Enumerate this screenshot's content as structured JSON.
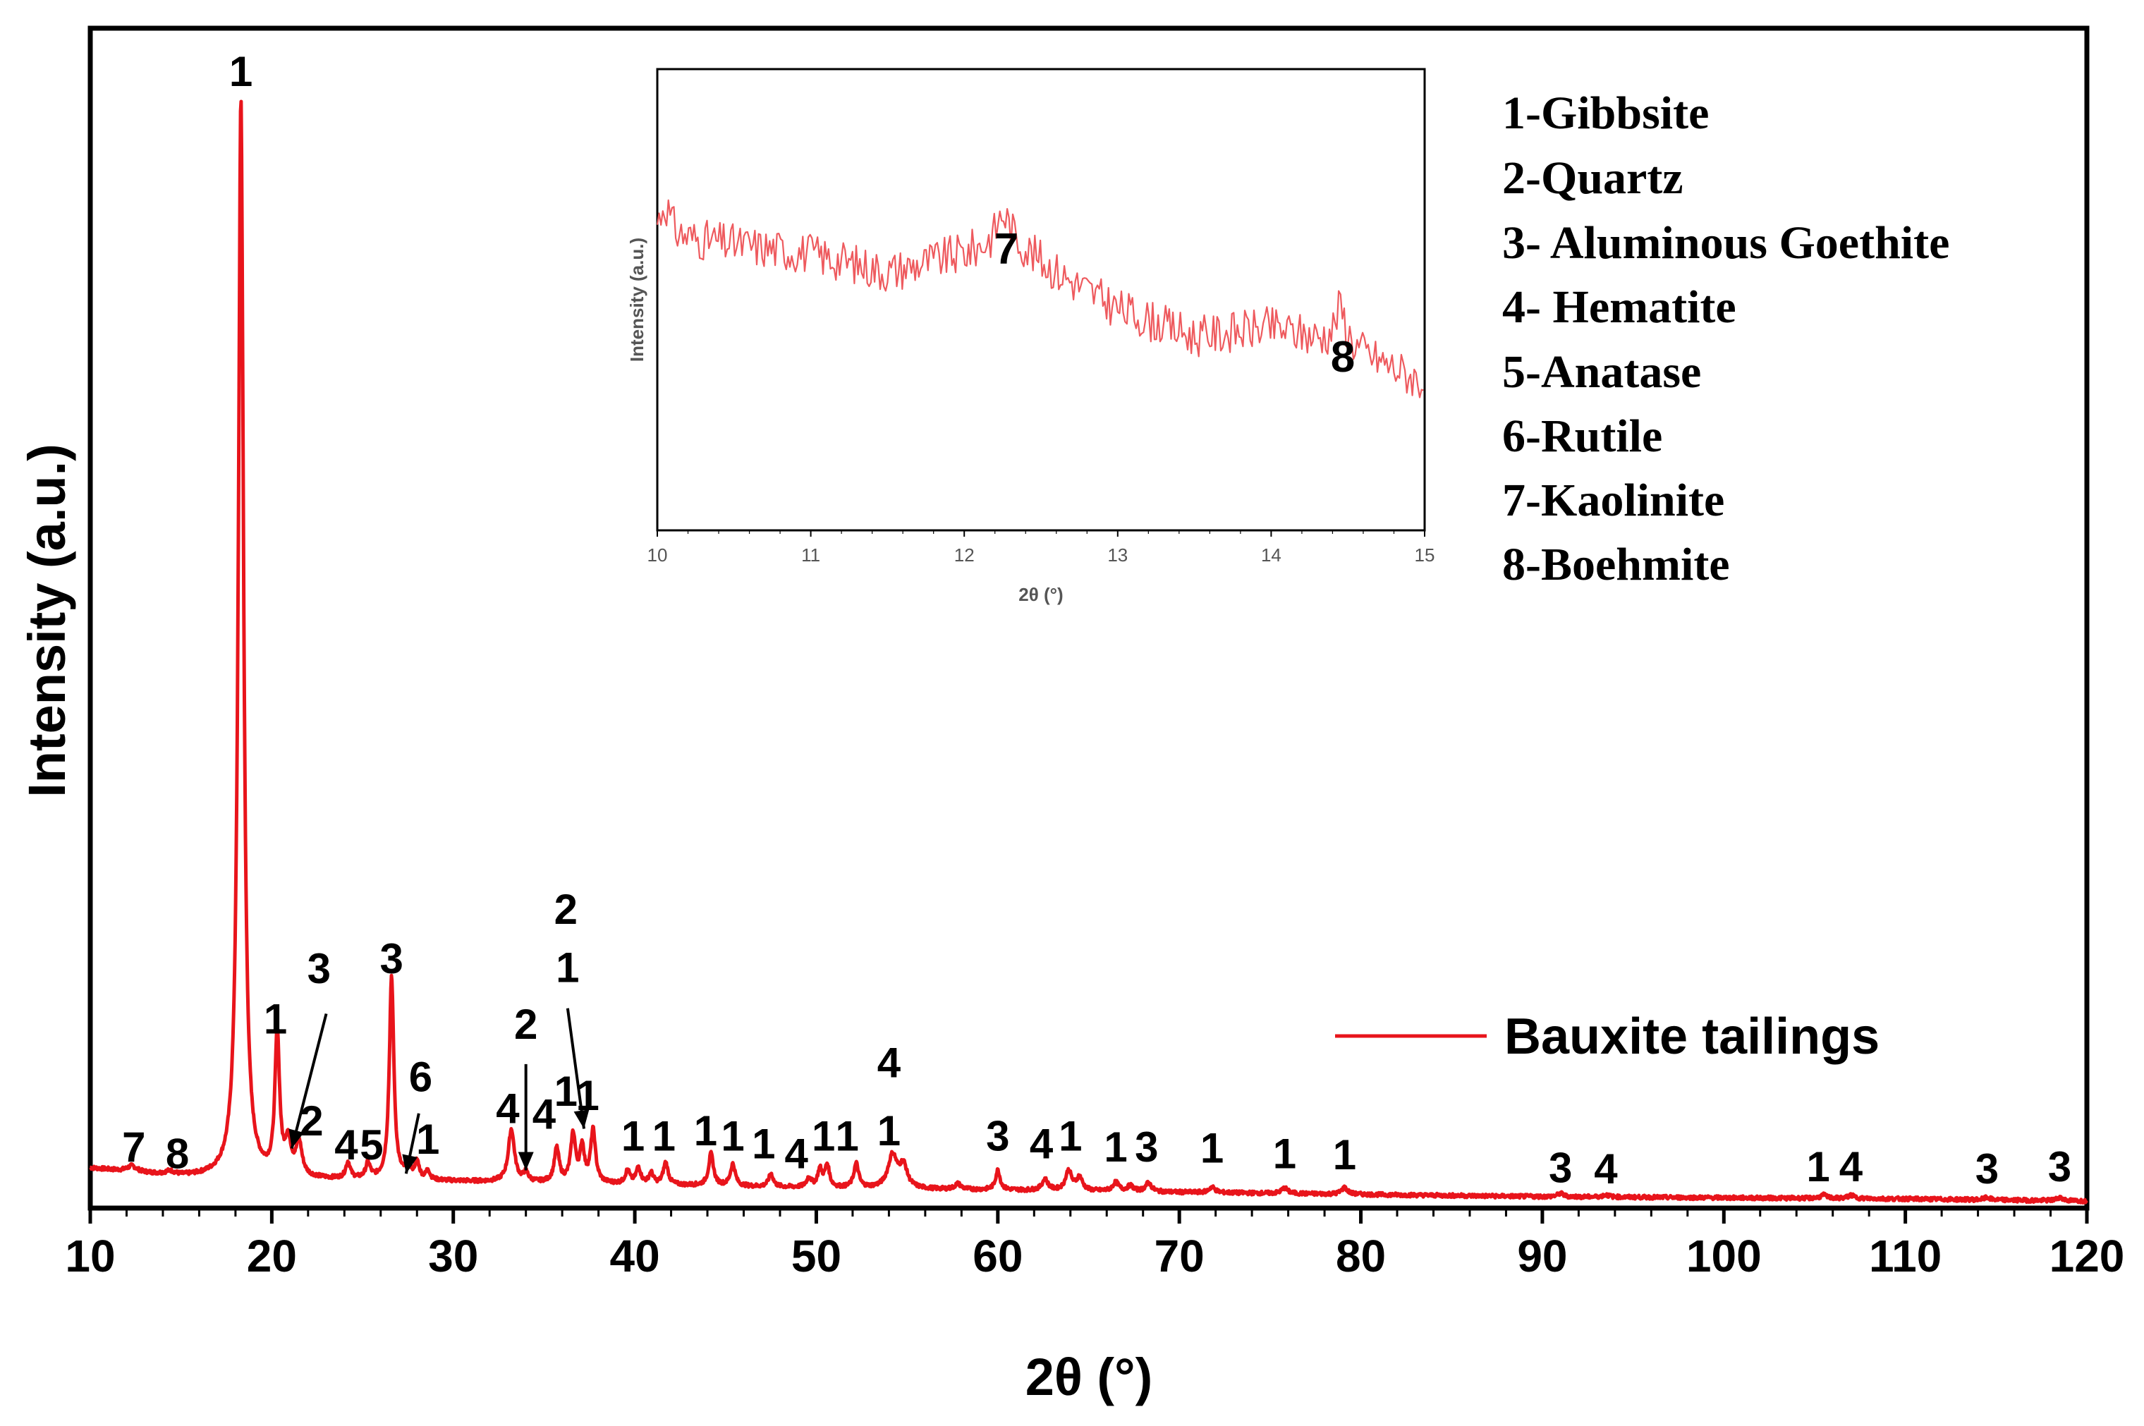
{
  "chart_data": [
    {
      "type": "line",
      "title": "",
      "xlabel": "2θ (°)",
      "ylabel": "Intensity (a.u.)",
      "xlim": [
        10,
        120
      ],
      "ylim": [
        0,
        100
      ],
      "x_ticks": [
        "10",
        "20",
        "30",
        "40",
        "50",
        "60",
        "70",
        "80",
        "90",
        "100",
        "110",
        "120"
      ],
      "legend": {
        "placement": "right",
        "entries": [
          {
            "name": "Bauxite tailings",
            "color": "#e8141b"
          }
        ]
      },
      "series": [
        {
          "name": "Bauxite tailings",
          "color": "#e8141b",
          "baseline": [
            [
              10,
              3.0
            ],
            [
              15,
              2.2
            ],
            [
              20,
              2.0
            ],
            [
              25,
              1.9
            ],
            [
              30,
              1.8
            ],
            [
              40,
              1.5
            ],
            [
              50,
              1.2
            ],
            [
              60,
              1.0
            ],
            [
              70,
              0.8
            ],
            [
              80,
              0.6
            ],
            [
              90,
              0.4
            ],
            [
              100,
              0.3
            ],
            [
              110,
              0.2
            ],
            [
              120,
              0.0
            ]
          ],
          "peaks": [
            {
              "x": 12.3,
              "h": 0.5,
              "w": 0.3
            },
            {
              "x": 14.4,
              "h": 0.3,
              "w": 0.3
            },
            {
              "x": 18.3,
              "h": 98.5,
              "w": 0.17
            },
            {
              "x": 20.3,
              "h": 13.0,
              "w": 0.15
            },
            {
              "x": 20.9,
              "h": 3.0,
              "w": 0.2
            },
            {
              "x": 21.5,
              "h": 3.0,
              "w": 0.2
            },
            {
              "x": 24.2,
              "h": 1.5,
              "w": 0.15
            },
            {
              "x": 25.3,
              "h": 1.4,
              "w": 0.15
            },
            {
              "x": 26.6,
              "h": 18.5,
              "w": 0.15
            },
            {
              "x": 27.5,
              "h": 1.3,
              "w": 0.15
            },
            {
              "x": 28.0,
              "h": 1.6,
              "w": 0.15
            },
            {
              "x": 28.6,
              "h": 0.9,
              "w": 0.12
            },
            {
              "x": 33.2,
              "h": 4.8,
              "w": 0.2
            },
            {
              "x": 34.0,
              "h": 0.8,
              "w": 0.15
            },
            {
              "x": 35.7,
              "h": 3.1,
              "w": 0.16
            },
            {
              "x": 36.6,
              "h": 4.4,
              "w": 0.16
            },
            {
              "x": 37.1,
              "h": 3.2,
              "w": 0.14
            },
            {
              "x": 37.7,
              "h": 4.8,
              "w": 0.16
            },
            {
              "x": 39.6,
              "h": 1.2,
              "w": 0.15
            },
            {
              "x": 40.2,
              "h": 1.5,
              "w": 0.15
            },
            {
              "x": 40.9,
              "h": 1.0,
              "w": 0.15
            },
            {
              "x": 41.7,
              "h": 2.0,
              "w": 0.16
            },
            {
              "x": 44.2,
              "h": 2.9,
              "w": 0.16
            },
            {
              "x": 45.4,
              "h": 2.0,
              "w": 0.16
            },
            {
              "x": 47.5,
              "h": 1.2,
              "w": 0.15
            },
            {
              "x": 49.6,
              "h": 0.9,
              "w": 0.15
            },
            {
              "x": 50.2,
              "h": 1.6,
              "w": 0.15
            },
            {
              "x": 50.6,
              "h": 2.0,
              "w": 0.15
            },
            {
              "x": 52.2,
              "h": 2.2,
              "w": 0.16
            },
            {
              "x": 54.2,
              "h": 3.0,
              "w": 0.3
            },
            {
              "x": 54.8,
              "h": 2.0,
              "w": 0.25
            },
            {
              "x": 57.8,
              "h": 0.5,
              "w": 0.2
            },
            {
              "x": 60.0,
              "h": 1.8,
              "w": 0.15
            },
            {
              "x": 62.6,
              "h": 1.0,
              "w": 0.2
            },
            {
              "x": 63.9,
              "h": 1.8,
              "w": 0.2
            },
            {
              "x": 64.5,
              "h": 1.2,
              "w": 0.2
            },
            {
              "x": 66.5,
              "h": 0.8,
              "w": 0.2
            },
            {
              "x": 67.3,
              "h": 0.5,
              "w": 0.2
            },
            {
              "x": 68.3,
              "h": 0.8,
              "w": 0.2
            },
            {
              "x": 71.8,
              "h": 0.5,
              "w": 0.2
            },
            {
              "x": 75.8,
              "h": 0.5,
              "w": 0.2
            },
            {
              "x": 79.1,
              "h": 0.6,
              "w": 0.2
            },
            {
              "x": 91.0,
              "h": 0.3,
              "w": 0.2
            },
            {
              "x": 93.5,
              "h": 0.2,
              "w": 0.2
            },
            {
              "x": 105.5,
              "h": 0.3,
              "w": 0.2
            },
            {
              "x": 107.0,
              "h": 0.3,
              "w": 0.2
            },
            {
              "x": 114.5,
              "h": 0.2,
              "w": 0.2
            },
            {
              "x": 118.5,
              "h": 0.3,
              "w": 0.2
            }
          ]
        }
      ],
      "peak_labels": [
        {
          "text": "7",
          "x": 12.4,
          "y": 3.6
        },
        {
          "text": "8",
          "x": 14.8,
          "y": 3.0
        },
        {
          "text": "1",
          "x": 18.3,
          "y": 101.8
        },
        {
          "text": "1",
          "x": 20.2,
          "y": 15.3
        },
        {
          "text": "3",
          "x": 22.6,
          "y": 19.9
        },
        {
          "text": "2",
          "x": 22.2,
          "y": 6.0
        },
        {
          "text": "4",
          "x": 24.1,
          "y": 3.8
        },
        {
          "text": "5",
          "x": 25.5,
          "y": 3.8
        },
        {
          "text": "3",
          "x": 26.6,
          "y": 20.8
        },
        {
          "text": "6",
          "x": 28.2,
          "y": 10.0
        },
        {
          "text": "1",
          "x": 28.6,
          "y": 4.3
        },
        {
          "text": "4",
          "x": 33.0,
          "y": 7.1
        },
        {
          "text": "2",
          "x": 34.0,
          "y": 14.8
        },
        {
          "text": "4",
          "x": 35.0,
          "y": 6.6
        },
        {
          "text": "2",
          "x": 36.2,
          "y": 25.3
        },
        {
          "text": "1",
          "x": 36.3,
          "y": 20.0
        },
        {
          "text": "1",
          "x": 36.2,
          "y": 8.7
        },
        {
          "text": "1",
          "x": 37.4,
          "y": 8.3
        },
        {
          "text": "1",
          "x": 39.9,
          "y": 4.6
        },
        {
          "text": "1",
          "x": 41.6,
          "y": 4.6
        },
        {
          "text": "1",
          "x": 43.9,
          "y": 5.1
        },
        {
          "text": "1",
          "x": 45.4,
          "y": 4.6
        },
        {
          "text": "1",
          "x": 47.1,
          "y": 3.9
        },
        {
          "text": "4",
          "x": 48.9,
          "y": 3.0
        },
        {
          "text": "1",
          "x": 50.4,
          "y": 4.6
        },
        {
          "text": "1",
          "x": 51.7,
          "y": 4.6
        },
        {
          "text": "4",
          "x": 54.0,
          "y": 11.3
        },
        {
          "text": "1",
          "x": 54.0,
          "y": 5.1
        },
        {
          "text": "3",
          "x": 60.0,
          "y": 4.6
        },
        {
          "text": "4",
          "x": 62.4,
          "y": 3.9
        },
        {
          "text": "1",
          "x": 64.0,
          "y": 4.6
        },
        {
          "text": "1",
          "x": 66.5,
          "y": 3.6
        },
        {
          "text": "3",
          "x": 68.2,
          "y": 3.6
        },
        {
          "text": "1",
          "x": 71.8,
          "y": 3.5
        },
        {
          "text": "1",
          "x": 75.8,
          "y": 3.0
        },
        {
          "text": "1",
          "x": 79.1,
          "y": 2.9
        },
        {
          "text": "3",
          "x": 91.0,
          "y": 1.7
        },
        {
          "text": "4",
          "x": 93.5,
          "y": 1.6
        },
        {
          "text": "1",
          "x": 105.2,
          "y": 1.8
        },
        {
          "text": "4",
          "x": 107.0,
          "y": 1.8
        },
        {
          "text": "3",
          "x": 114.5,
          "y": 1.6
        },
        {
          "text": "3",
          "x": 118.5,
          "y": 1.8
        }
      ],
      "arrows": [
        {
          "from": [
            23.0,
            17.1
          ],
          "to": [
            21.1,
            4.8
          ]
        },
        {
          "from": [
            34.0,
            12.5
          ],
          "to": [
            34.0,
            2.8
          ]
        },
        {
          "from": [
            36.3,
            17.6
          ],
          "to": [
            37.2,
            6.6
          ]
        },
        {
          "from": [
            28.1,
            8.0
          ],
          "to": [
            27.4,
            2.5
          ]
        }
      ]
    },
    {
      "type": "line",
      "title": "",
      "xlabel": "2θ (°)",
      "ylabel": "Intensity (a.u.)",
      "xlim": [
        10,
        15
      ],
      "ylim": [
        0,
        100
      ],
      "x_ticks": [
        "10",
        "11",
        "12",
        "13",
        "14",
        "15"
      ],
      "series": [
        {
          "name": "Bauxite tailings (inset)",
          "color": "#ee5a5e",
          "trend": [
            [
              10,
              64
            ],
            [
              11,
              60
            ],
            [
              11.5,
              56
            ],
            [
              12.0,
              60
            ],
            [
              12.3,
              63
            ],
            [
              12.6,
              56
            ],
            [
              13.0,
              48
            ],
            [
              13.5,
              42
            ],
            [
              14.0,
              44
            ],
            [
              14.5,
              40
            ],
            [
              15,
              32
            ]
          ],
          "noise_amplitude": 4.5,
          "peaks": [
            {
              "x": 12.25,
              "h": 6,
              "w": 0.05
            },
            {
              "x": 14.45,
              "h": 8,
              "w": 0.04
            },
            {
              "x": 10.05,
              "h": 7,
              "w": 0.04
            }
          ]
        }
      ],
      "peak_labels": [
        {
          "text": "7"
        },
        {
          "text": "8"
        }
      ]
    }
  ],
  "phases": [
    "1-Gibbsite",
    "2-Quartz",
    "3- Aluminous Goethite",
    "4- Hematite",
    "5-Anatase",
    "6-Rutile",
    "7-Kaolinite",
    "8-Boehmite"
  ]
}
